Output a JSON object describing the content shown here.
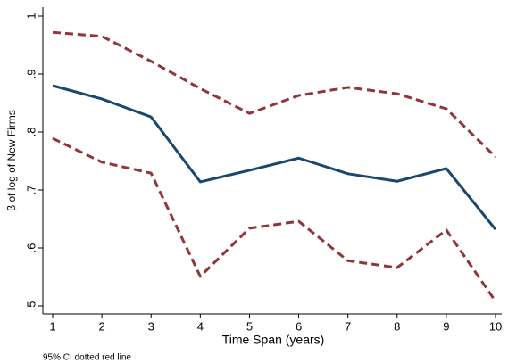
{
  "chart_data": {
    "type": "line",
    "x_label": "Time Span (years)",
    "y_label": "β of log of New Firms",
    "note": "95% CI dotted red line",
    "x": [
      1,
      2,
      3,
      4,
      5,
      6,
      7,
      8,
      9,
      10
    ],
    "series": [
      {
        "color": "#1a476f",
        "dash": false,
        "values": [
          0.88,
          0.857,
          0.826,
          0.714,
          0.734,
          0.755,
          0.728,
          0.715,
          0.737,
          0.632
        ]
      },
      {
        "color": "#90353b",
        "dash": true,
        "values": [
          0.972,
          0.965,
          0.922,
          0.875,
          0.832,
          0.863,
          0.877,
          0.866,
          0.84,
          0.757
        ]
      },
      {
        "color": "#90353b",
        "dash": true,
        "values": [
          0.789,
          0.748,
          0.729,
          0.551,
          0.634,
          0.646,
          0.578,
          0.566,
          0.631,
          0.508
        ]
      }
    ],
    "xlim": [
      1,
      10
    ],
    "xticks": [
      1,
      2,
      3,
      4,
      5,
      6,
      7,
      8,
      9,
      10
    ],
    "ylim": [
      0.5,
      1
    ],
    "yticks": [
      {
        "value": 0.5,
        "label": ".5"
      },
      {
        "value": 0.6,
        "label": ".6"
      },
      {
        "value": 0.7,
        "label": ".7"
      },
      {
        "value": 0.8,
        "label": ".8"
      },
      {
        "value": 0.9,
        "label": ".9"
      },
      1
    ],
    "grid": false
  }
}
